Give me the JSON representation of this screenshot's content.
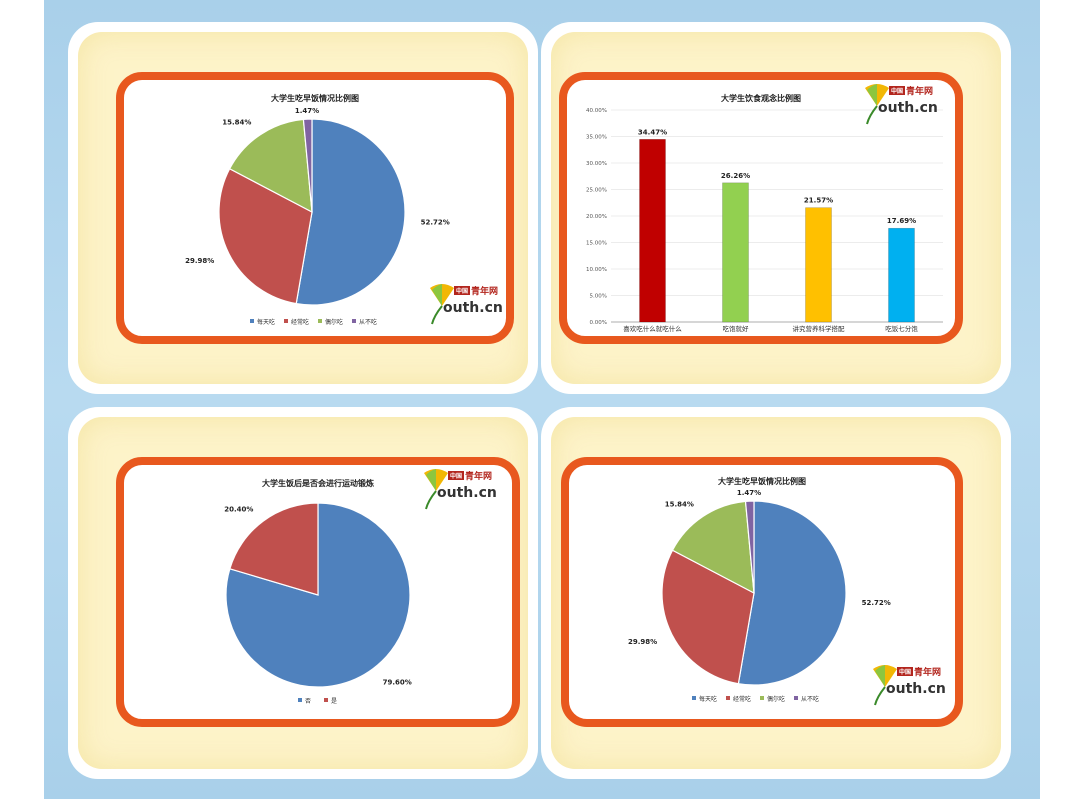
{
  "logo": {
    "cn_badge": "中国",
    "cn_text": "青年网",
    "en_text": "outh.cn"
  },
  "colors": {
    "frame": "#e8581e",
    "card_fill": "#fdf3c9",
    "blue": "#4f81bd",
    "red": "#c0504d",
    "green": "#9bbb59",
    "purple": "#8064a2"
  },
  "chart_data": [
    {
      "type": "pie",
      "title": "大学生吃早饭情况比例图",
      "categories": [
        "每天吃",
        "经常吃",
        "偶尔吃",
        "从不吃"
      ],
      "values": [
        52.72,
        29.98,
        15.84,
        1.47
      ],
      "labels": [
        "52.72%",
        "29.98%",
        "15.84%",
        "1.47%"
      ],
      "colors": [
        "#4f81bd",
        "#c0504d",
        "#9bbb59",
        "#8064a2"
      ],
      "legend": "bottom"
    },
    {
      "type": "bar",
      "title": "大学生饮食观念比例图",
      "categories": [
        "喜欢吃什么就吃什么",
        "吃饱就好",
        "讲究营养科学搭配",
        "吃饭七分饱"
      ],
      "values": [
        34.47,
        26.26,
        21.57,
        17.69
      ],
      "labels": [
        "34.47%",
        "26.26%",
        "21.57%",
        "17.69%"
      ],
      "colors": [
        "#c00000",
        "#92d050",
        "#ffc000",
        "#00b0f0"
      ],
      "yticks": [
        "0.00%",
        "5.00%",
        "10.00%",
        "15.00%",
        "20.00%",
        "25.00%",
        "30.00%",
        "35.00%",
        "40.00%"
      ],
      "ylim": [
        0,
        40
      ],
      "grid": true
    },
    {
      "type": "pie",
      "title": "大学生饭后是否会进行运动锻炼",
      "categories": [
        "否",
        "是"
      ],
      "values": [
        79.6,
        20.4
      ],
      "labels": [
        "79.60%",
        "20.40%"
      ],
      "colors": [
        "#4f81bd",
        "#c0504d"
      ],
      "legend": "bottom"
    },
    {
      "type": "pie",
      "title": "大学生吃早饭情况比例图",
      "categories": [
        "每天吃",
        "经常吃",
        "偶尔吃",
        "从不吃"
      ],
      "values": [
        52.72,
        29.98,
        15.84,
        1.47
      ],
      "labels": [
        "52.72%",
        "29.98%",
        "15.84%",
        "1.47%"
      ],
      "colors": [
        "#4f81bd",
        "#c0504d",
        "#9bbb59",
        "#8064a2"
      ],
      "legend": "bottom"
    }
  ]
}
